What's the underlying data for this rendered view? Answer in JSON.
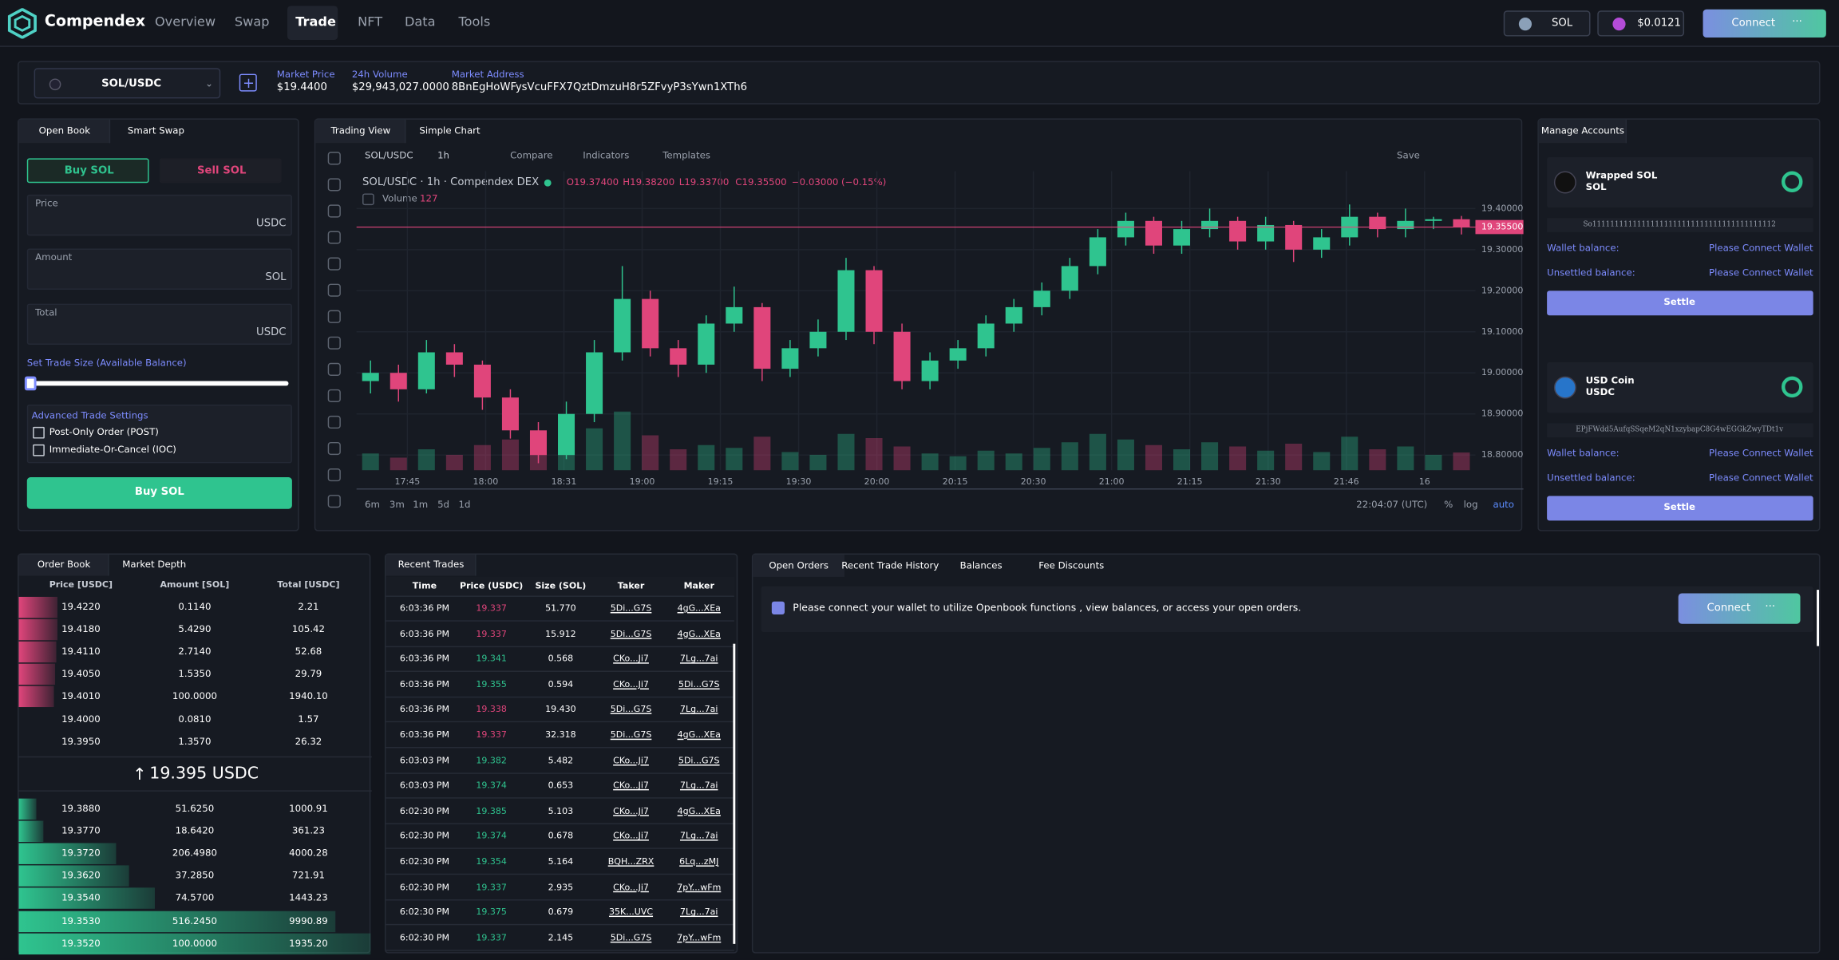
{
  "nav": {
    "brand": "Compendex",
    "links": [
      "Overview",
      "Swap",
      "Trade",
      "NFT",
      "Data",
      "Tools"
    ],
    "wallet": [
      "SOL",
      "$0.0121"
    ],
    "connect": "Connect"
  },
  "market": {
    "pair": "SOL/USDC",
    "stats": [
      {
        "label": "Market Price",
        "value": "$19.4400"
      },
      {
        "label": "24h Volume",
        "value": "$29,943,027.0000"
      },
      {
        "label": "Market Address",
        "value": "8BnEgHoWFysVcuFFX7QztDmzuH8r5ZFvyP3sYwn1XTh6"
      }
    ]
  },
  "trade_form": {
    "tabs": [
      "Open Book",
      "Smart Swap"
    ],
    "sides": [
      "Buy SOL",
      "Sell SOL"
    ],
    "fields": [
      {
        "label": "Price",
        "unit": "USDC"
      },
      {
        "label": "Amount",
        "unit": "SOL"
      },
      {
        "label": "Total",
        "unit": "USDC"
      }
    ],
    "slider_label": "Set Trade Size (Available Balance)",
    "advanced_title": "Advanced Trade Settings",
    "options": [
      "Post-Only Order (POST)",
      "Immediate-Or-Cancel (IOC)"
    ],
    "submit": "Buy SOL"
  },
  "chart_panel": {
    "tabs": [
      "Trading View",
      "Simple Chart"
    ],
    "symbol": "SOL/USDC",
    "interval": "1h",
    "tools": [
      "Compare",
      "Indicators",
      "Templates"
    ],
    "save": "Save",
    "legend_title": "SOL/USDC · 1h · Compendex DEX",
    "legend_ohlc": [
      "O19.37400",
      "H19.38200",
      "L19.33700",
      "C19.35500",
      "−0.03000 (−0.15%)"
    ],
    "volume_label": "Volume",
    "ranges": [
      "6m",
      "3m",
      "1m",
      "5d",
      "1d"
    ],
    "clock": "22:04:07 (UTC)",
    "scale_options": [
      "%",
      "log",
      "auto"
    ]
  },
  "chart_data": {
    "type": "candlestick",
    "up_color": "#2fc48f",
    "down_color": "#e0457b",
    "candles": [
      [
        18.98,
        19.03,
        18.95,
        19.0
      ],
      [
        19.0,
        19.02,
        18.93,
        18.96
      ],
      [
        18.96,
        19.08,
        18.95,
        19.05
      ],
      [
        19.05,
        19.07,
        18.99,
        19.02
      ],
      [
        19.02,
        19.03,
        18.91,
        18.94
      ],
      [
        18.94,
        18.96,
        18.84,
        18.86
      ],
      [
        18.86,
        18.88,
        18.78,
        18.8
      ],
      [
        18.8,
        18.93,
        18.79,
        18.9
      ],
      [
        18.9,
        19.08,
        18.88,
        19.05
      ],
      [
        19.05,
        19.26,
        19.03,
        19.18
      ],
      [
        19.18,
        19.2,
        19.04,
        19.06
      ],
      [
        19.06,
        19.08,
        18.99,
        19.02
      ],
      [
        19.02,
        19.14,
        19.0,
        19.12
      ],
      [
        19.12,
        19.21,
        19.1,
        19.16
      ],
      [
        19.16,
        19.17,
        18.98,
        19.01
      ],
      [
        19.01,
        19.08,
        18.99,
        19.06
      ],
      [
        19.06,
        19.13,
        19.04,
        19.1
      ],
      [
        19.1,
        19.28,
        19.08,
        19.25
      ],
      [
        19.25,
        19.26,
        19.07,
        19.1
      ],
      [
        19.1,
        19.12,
        18.96,
        18.98
      ],
      [
        18.98,
        19.05,
        18.96,
        19.03
      ],
      [
        19.03,
        19.08,
        19.01,
        19.06
      ],
      [
        19.06,
        19.14,
        19.04,
        19.12
      ],
      [
        19.12,
        19.18,
        19.1,
        19.16
      ],
      [
        19.16,
        19.22,
        19.14,
        19.2
      ],
      [
        19.2,
        19.28,
        19.18,
        19.26
      ],
      [
        19.26,
        19.35,
        19.24,
        19.33
      ],
      [
        19.33,
        19.39,
        19.31,
        19.37
      ],
      [
        19.37,
        19.38,
        19.29,
        19.31
      ],
      [
        19.31,
        19.37,
        19.29,
        19.35
      ],
      [
        19.35,
        19.4,
        19.33,
        19.37
      ],
      [
        19.37,
        19.38,
        19.3,
        19.32
      ],
      [
        19.32,
        19.38,
        19.3,
        19.36
      ],
      [
        19.36,
        19.37,
        19.27,
        19.3
      ],
      [
        19.3,
        19.35,
        19.28,
        19.33
      ],
      [
        19.33,
        19.41,
        19.31,
        19.38
      ],
      [
        19.38,
        19.39,
        19.33,
        19.35
      ],
      [
        19.35,
        19.4,
        19.33,
        19.37
      ],
      [
        19.37,
        19.38,
        19.35,
        19.374
      ],
      [
        19.374,
        19.382,
        19.337,
        19.355
      ]
    ],
    "volumes": [
      120,
      90,
      150,
      110,
      180,
      220,
      260,
      200,
      300,
      420,
      250,
      150,
      180,
      160,
      240,
      130,
      110,
      260,
      230,
      170,
      120,
      100,
      140,
      120,
      160,
      200,
      260,
      220,
      180,
      150,
      200,
      170,
      140,
      190,
      130,
      240,
      150,
      170,
      110,
      127
    ],
    "xticks": [
      "17:45",
      "18:00",
      "18:31",
      "19:00",
      "19:15",
      "19:30",
      "20:00",
      "20:15",
      "20:30",
      "21:00",
      "21:15",
      "21:30",
      "21:46",
      "16"
    ],
    "ylim": [
      18.763,
      19.491
    ],
    "yticks": [
      {
        "value": 18.8,
        "label": "18.80000"
      },
      {
        "value": 18.9,
        "label": "18.90000"
      },
      {
        "value": 19.0,
        "label": "19.00000"
      },
      {
        "value": 19.1,
        "label": "19.10000"
      },
      {
        "value": 19.2,
        "label": "19.20000"
      },
      {
        "value": 19.3,
        "label": "19.30000"
      },
      {
        "value": 19.4,
        "label": "19.40000"
      }
    ],
    "last_price": {
      "value": 19.355,
      "label": "19.35500"
    },
    "grid": true
  },
  "accounts": {
    "tab": "Manage Accounts",
    "items": [
      {
        "name": "Wrapped SOL",
        "symbol": "SOL",
        "address": "So11111111111111111111111111111111111111112",
        "rows": [
          [
            "Wallet balance:",
            "Please Connect Wallet"
          ],
          [
            "Unsettled balance:",
            "Please Connect Wallet"
          ]
        ],
        "button": "Settle"
      },
      {
        "name": "USD Coin",
        "symbol": "USDC",
        "address": "EPjFWdd5AufqSSqeM2qN1xzybapC8G4wEGGkZwyTDt1v",
        "rows": [
          [
            "Wallet balance:",
            "Please Connect Wallet"
          ],
          [
            "Unsettled balance:",
            "Please Connect Wallet"
          ]
        ],
        "button": "Settle"
      }
    ]
  },
  "order_book": {
    "tabs": [
      "Order Book",
      "Market Depth"
    ],
    "headers": [
      "Price [USDC]",
      "Amount [SOL]",
      "Total [USDC]"
    ],
    "asks": [
      [
        "19.4220",
        "0.1140",
        "2.21"
      ],
      [
        "19.4180",
        "5.4290",
        "105.42"
      ],
      [
        "19.4110",
        "2.7140",
        "52.68"
      ],
      [
        "19.4050",
        "1.5350",
        "29.79"
      ],
      [
        "19.4010",
        "100.0000",
        "1940.10"
      ],
      [
        "19.4000",
        "0.0810",
        "1.57"
      ],
      [
        "19.3950",
        "1.3570",
        "26.32"
      ]
    ],
    "mid": "19.395 USDC",
    "bids": [
      [
        "19.3880",
        "51.6250",
        "1000.91"
      ],
      [
        "19.3770",
        "18.6420",
        "361.23"
      ],
      [
        "19.3720",
        "206.4980",
        "4000.28"
      ],
      [
        "19.3620",
        "37.2850",
        "721.91"
      ],
      [
        "19.3540",
        "74.5700",
        "1443.23"
      ],
      [
        "19.3530",
        "516.2450",
        "9990.89"
      ],
      [
        "19.3520",
        "100.0000",
        "1935.20"
      ]
    ],
    "ask_color": "#e0457b",
    "bid_color": "#2fc48f"
  },
  "recent_trades": {
    "tab": "Recent Trades",
    "headers": [
      "Time",
      "Price (USDC)",
      "Size (SOL)",
      "Taker",
      "Maker"
    ],
    "rows": [
      {
        "cells": [
          "6:03:36 PM",
          "19.337",
          "51.770",
          "5Di...G7S",
          "4gG...XEa"
        ],
        "color": "#e0457b"
      },
      {
        "cells": [
          "6:03:36 PM",
          "19.337",
          "15.912",
          "5Di...G7S",
          "4gG...XEa"
        ],
        "color": "#e0457b"
      },
      {
        "cells": [
          "6:03:36 PM",
          "19.341",
          "0.568",
          "CKo...Ji7",
          "7Lg...7ai"
        ],
        "color": "#2fc48f"
      },
      {
        "cells": [
          "6:03:36 PM",
          "19.355",
          "0.594",
          "CKo...Ji7",
          "5Di...G7S"
        ],
        "color": "#2fc48f"
      },
      {
        "cells": [
          "6:03:36 PM",
          "19.338",
          "19.430",
          "5Di...G7S",
          "7Lg...7ai"
        ],
        "color": "#e0457b"
      },
      {
        "cells": [
          "6:03:36 PM",
          "19.337",
          "32.318",
          "5Di...G7S",
          "4gG...XEa"
        ],
        "color": "#e0457b"
      },
      {
        "cells": [
          "6:03:03 PM",
          "19.382",
          "5.482",
          "CKo...Ji7",
          "5Di...G7S"
        ],
        "color": "#2fc48f"
      },
      {
        "cells": [
          "6:03:03 PM",
          "19.374",
          "0.653",
          "CKo...Ji7",
          "7Lg...7ai"
        ],
        "color": "#2fc48f"
      },
      {
        "cells": [
          "6:02:30 PM",
          "19.385",
          "5.103",
          "CKo...Ji7",
          "4gG...XEa"
        ],
        "color": "#2fc48f"
      },
      {
        "cells": [
          "6:02:30 PM",
          "19.374",
          "0.678",
          "CKo...Ji7",
          "7Lg...7ai"
        ],
        "color": "#2fc48f"
      },
      {
        "cells": [
          "6:02:30 PM",
          "19.354",
          "5.164",
          "BQH...ZRX",
          "6Lq...zMJ"
        ],
        "color": "#2fc48f"
      },
      {
        "cells": [
          "6:02:30 PM",
          "19.337",
          "2.935",
          "CKo...Ji7",
          "7pY...wFm"
        ],
        "color": "#2fc48f"
      },
      {
        "cells": [
          "6:02:30 PM",
          "19.375",
          "0.679",
          "35K...UVC",
          "7Lg...7ai"
        ],
        "color": "#2fc48f"
      },
      {
        "cells": [
          "6:02:30 PM",
          "19.337",
          "2.145",
          "5Di...G7S",
          "7pY...wFm"
        ],
        "color": "#2fc48f"
      }
    ]
  },
  "orders": {
    "tabs": [
      "Open Orders",
      "Recent Trade History",
      "Balances",
      "Fee Discounts"
    ],
    "message": "Please connect your wallet to utilize Openbook functions , view balances, or access your open orders.",
    "button": "Connect"
  }
}
